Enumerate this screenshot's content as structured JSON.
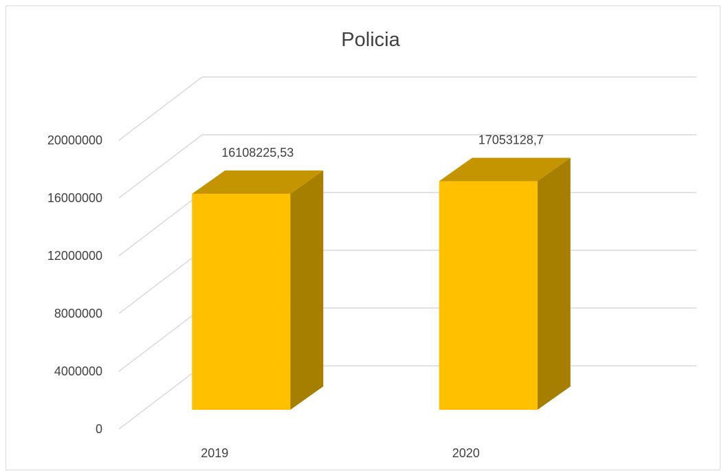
{
  "chart_data": {
    "type": "bar",
    "title": "Policia",
    "categories": [
      "2019",
      "2020"
    ],
    "values": [
      16108225.53,
      17053128.7
    ],
    "data_labels": [
      "16108225,53",
      "17053128,7"
    ],
    "y_ticks": [
      "0",
      "4000000",
      "8000000",
      "12000000",
      "16000000",
      "20000000"
    ],
    "ylim": [
      0,
      20000000
    ],
    "grid": true,
    "legend": "none",
    "xlabel": "",
    "ylabel": "",
    "colors": {
      "front": "#FFC000",
      "top": "#C49500",
      "side": "#A67F00",
      "grid": "#D9D9D9"
    }
  }
}
